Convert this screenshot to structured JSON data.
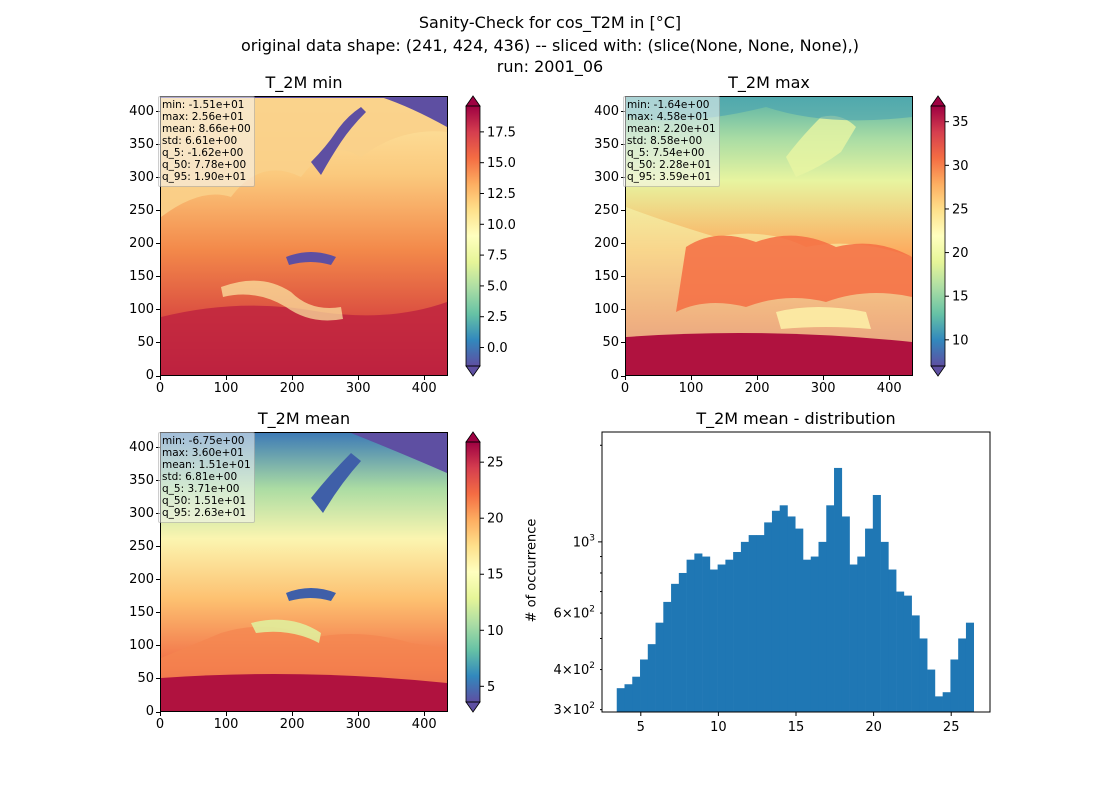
{
  "figure": {
    "title_lines": [
      "Sanity-Check for cos_T2M in [°C]",
      "original data shape: (241, 424, 436) -- sliced with: (slice(None, None, None),)",
      "run: 2001_06"
    ]
  },
  "panels": {
    "min": {
      "title": "T_2M min",
      "stats": [
        "min: -1.51e+01",
        "max: 2.56e+01",
        "mean: 8.66e+00",
        "std: 6.61e+00",
        "q_5: -1.62e+00",
        "q_50: 7.78e+00",
        "q_95: 1.90e+01"
      ],
      "colorbar": {
        "vmin": -1.5,
        "vmax": 19.6,
        "ticks": [
          "0.0",
          "2.5",
          "5.0",
          "7.5",
          "10.0",
          "12.5",
          "15.0",
          "17.5"
        ],
        "tick_values": [
          0,
          2.5,
          5,
          7.5,
          10,
          12.5,
          15,
          17.5
        ]
      }
    },
    "max": {
      "title": "T_2M max",
      "stats": [
        "min: -1.64e+00",
        "max: 4.58e+01",
        "mean: 2.20e+01",
        "std: 8.58e+00",
        "q_5: 7.54e+00",
        "q_50: 2.28e+01",
        "q_95: 3.59e+01"
      ],
      "colorbar": {
        "vmin": 7.0,
        "vmax": 36.8,
        "ticks": [
          "10",
          "15",
          "20",
          "25",
          "30",
          "35"
        ],
        "tick_values": [
          10,
          15,
          20,
          25,
          30,
          35
        ]
      }
    },
    "mean": {
      "title": "T_2M mean",
      "stats": [
        "min: -6.75e+00",
        "max: 3.60e+01",
        "mean: 1.51e+01",
        "std: 6.81e+00",
        "q_5: 3.71e+00",
        "q_50: 1.51e+01",
        "q_95: 2.63e+01"
      ],
      "colorbar": {
        "vmin": 3.6,
        "vmax": 26.8,
        "ticks": [
          "5",
          "10",
          "15",
          "20",
          "25"
        ],
        "tick_values": [
          5,
          10,
          15,
          20,
          25
        ]
      }
    },
    "dist": {
      "title": "T_2M mean - distribution"
    }
  },
  "map_axes": {
    "xticks": [
      "0",
      "100",
      "200",
      "300",
      "400"
    ],
    "xtick_values": [
      0,
      100,
      200,
      300,
      400
    ],
    "yticks": [
      "0",
      "50",
      "100",
      "150",
      "200",
      "250",
      "300",
      "350",
      "400"
    ],
    "ytick_values": [
      0,
      50,
      100,
      150,
      200,
      250,
      300,
      350,
      400
    ],
    "xlim": [
      0,
      436
    ],
    "ylim": [
      0,
      424
    ]
  },
  "chart_data": {
    "type": "bar",
    "title": "T_2M mean - distribution",
    "xlabel": "",
    "ylabel": "# of occurrence",
    "xlim": [
      2.5,
      27.5
    ],
    "ylim": [
      295,
      2200
    ],
    "yscale": "log",
    "xticks": [
      "5",
      "10",
      "15",
      "20",
      "25"
    ],
    "xtick_values": [
      5,
      10,
      15,
      20,
      25
    ],
    "yticks_major": [
      "10^3"
    ],
    "ytick_major_values": [
      1000
    ],
    "yticks_minor": [
      "3 × 10^2",
      "4 × 10^2",
      "6 × 10^2"
    ],
    "ytick_minor_values": [
      300,
      400,
      600
    ],
    "color": "#1f77b4",
    "x": [
      3.7,
      4.2,
      4.7,
      5.2,
      5.7,
      6.2,
      6.7,
      7.2,
      7.7,
      8.2,
      8.7,
      9.2,
      9.7,
      10.2,
      10.7,
      11.2,
      11.7,
      12.2,
      12.7,
      13.2,
      13.7,
      14.2,
      14.7,
      15.2,
      15.7,
      16.2,
      16.7,
      17.2,
      17.7,
      18.2,
      18.7,
      19.2,
      19.7,
      20.2,
      20.7,
      21.2,
      21.7,
      22.2,
      22.7,
      23.2,
      23.7,
      24.2,
      24.7,
      25.2,
      25.7,
      26.2
    ],
    "values": [
      350,
      360,
      380,
      430,
      480,
      560,
      650,
      740,
      800,
      880,
      920,
      900,
      820,
      850,
      880,
      930,
      1000,
      1050,
      1050,
      1150,
      1250,
      1300,
      1200,
      1100,
      880,
      900,
      1000,
      1300,
      1700,
      1200,
      850,
      900,
      1100,
      1400,
      1000,
      820,
      700,
      680,
      590,
      500,
      400,
      330,
      340,
      430,
      500,
      560
    ]
  }
}
